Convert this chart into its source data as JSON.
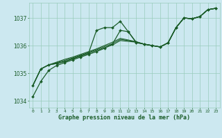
{
  "background_color": "#cce8f0",
  "plot_bg_color": "#cce8f0",
  "grid_color": "#99ccbb",
  "line_color": "#1a5c28",
  "xlim": [
    -0.5,
    23.5
  ],
  "ylim": [
    1033.75,
    1037.55
  ],
  "yticks": [
    1034,
    1035,
    1036,
    1037
  ],
  "xlabel": "Graphe pression niveau de la mer (hPa)",
  "series": [
    {
      "y": [
        1034.15,
        1034.7,
        1035.1,
        1035.28,
        1035.38,
        1035.48,
        1035.58,
        1035.68,
        1035.78,
        1035.9,
        1036.05,
        1036.55,
        1036.5,
        1036.1,
        1036.05,
        1036.0,
        1035.95,
        1036.1,
        1036.65,
        1037.0,
        1036.97,
        1037.05,
        1037.3,
        1037.35
      ],
      "marker": true,
      "lw": 0.9
    },
    {
      "y": [
        1034.55,
        1035.15,
        1035.3,
        1035.35,
        1035.42,
        1035.52,
        1035.62,
        1035.72,
        1035.82,
        1035.92,
        1036.02,
        1036.18,
        1036.15,
        1036.12,
        1036.05,
        1036.0,
        1035.95,
        1036.1,
        1036.65,
        1037.0,
        1036.97,
        1037.05,
        1037.3,
        1037.35
      ],
      "marker": false,
      "lw": 0.8
    },
    {
      "y": [
        1034.55,
        1035.15,
        1035.3,
        1035.38,
        1035.46,
        1035.55,
        1035.65,
        1035.75,
        1035.85,
        1035.96,
        1036.07,
        1036.22,
        1036.18,
        1036.13,
        1036.05,
        1036.0,
        1035.95,
        1036.1,
        1036.65,
        1037.0,
        1036.97,
        1037.05,
        1037.3,
        1037.35
      ],
      "marker": false,
      "lw": 0.8
    },
    {
      "y": [
        1034.55,
        1035.15,
        1035.3,
        1035.4,
        1035.5,
        1035.58,
        1035.68,
        1035.78,
        1035.88,
        1036.0,
        1036.12,
        1036.26,
        1036.2,
        1036.14,
        1036.05,
        1036.0,
        1035.95,
        1036.1,
        1036.65,
        1037.0,
        1036.97,
        1037.05,
        1037.3,
        1037.35
      ],
      "marker": false,
      "lw": 0.8
    },
    {
      "y": [
        1034.55,
        1035.15,
        1035.3,
        1035.35,
        1035.42,
        1035.52,
        1035.62,
        1035.72,
        1036.55,
        1036.65,
        1036.65,
        1036.88,
        1036.5,
        1036.12,
        1036.05,
        1036.0,
        1035.95,
        1036.1,
        1036.65,
        1037.0,
        1036.97,
        1037.05,
        1037.3,
        1037.35
      ],
      "marker": true,
      "lw": 0.9
    }
  ]
}
